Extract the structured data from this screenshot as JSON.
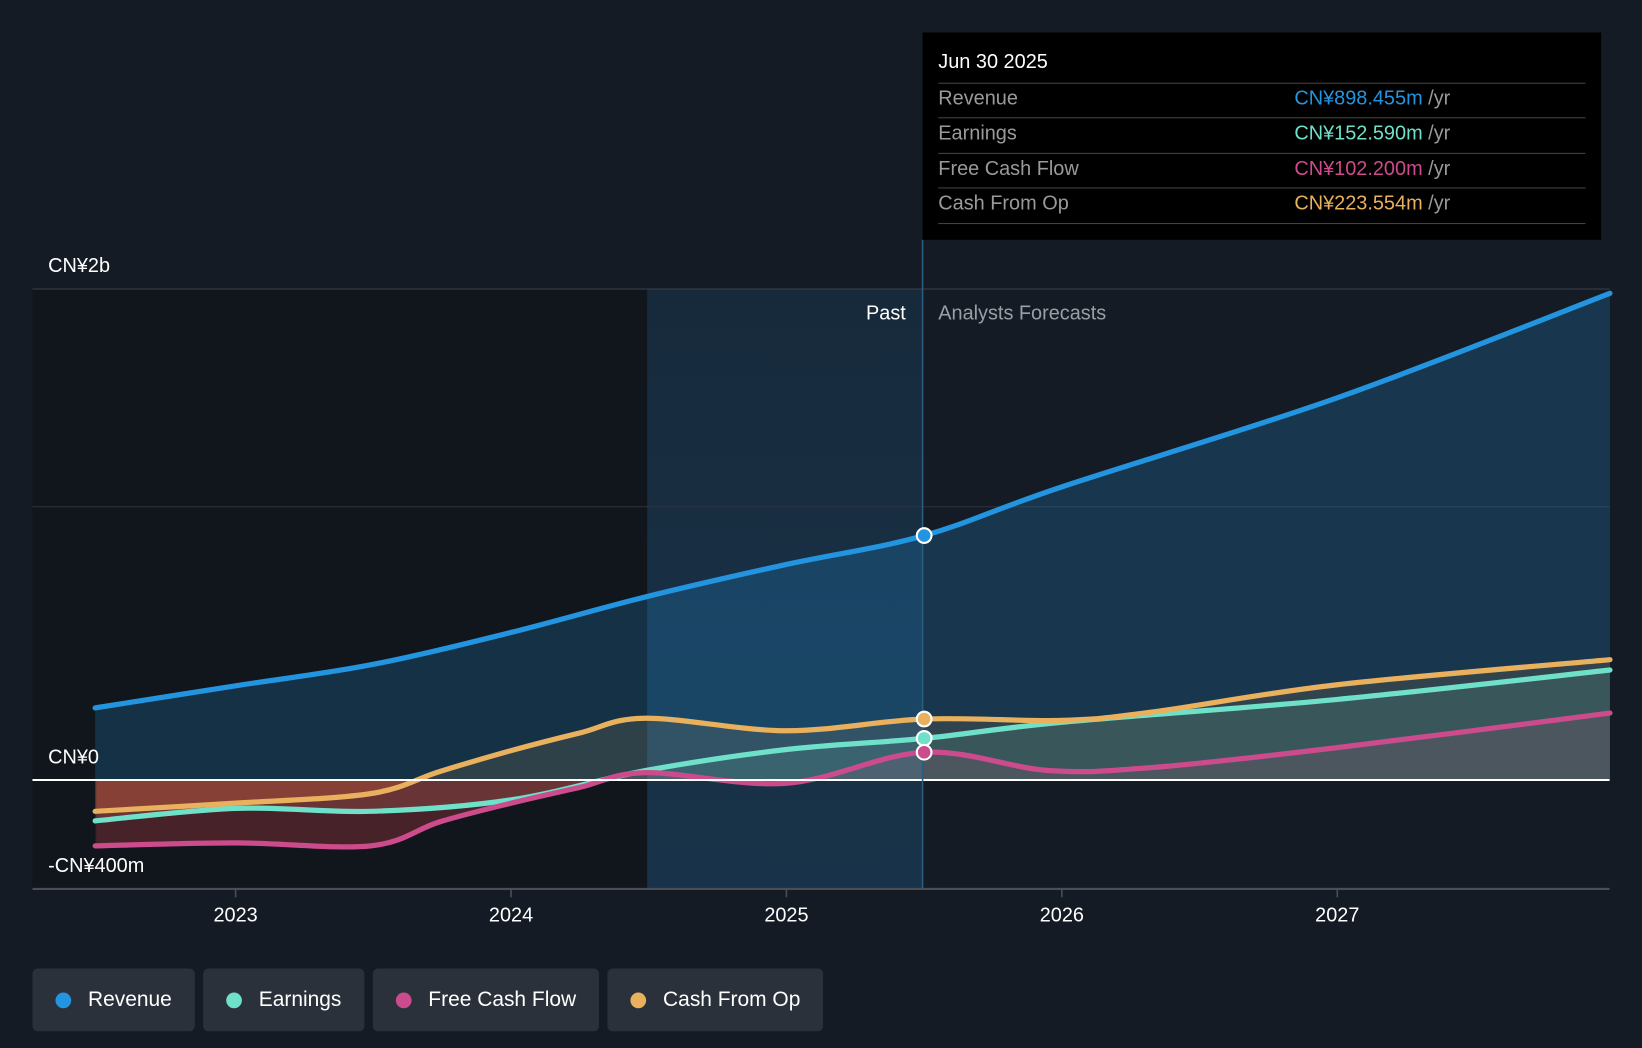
{
  "tooltip": {
    "date": "Jun 30 2025",
    "rows": [
      {
        "label": "Revenue",
        "value": "CN¥898.455m",
        "unit": "/yr",
        "color": "#2394df"
      },
      {
        "label": "Earnings",
        "value": "CN¥152.590m",
        "unit": "/yr",
        "color": "#6fe0c9"
      },
      {
        "label": "Free Cash Flow",
        "value": "CN¥102.200m",
        "unit": "/yr",
        "color": "#cc4b8c"
      },
      {
        "label": "Cash From Op",
        "value": "CN¥223.554m",
        "unit": "/yr",
        "color": "#e9b05d"
      }
    ]
  },
  "chart_data": {
    "type": "line",
    "title": "",
    "xlabel": "",
    "ylabel": "",
    "y_unit": "CN¥ millions",
    "y_tick_labels": [
      {
        "value": 2000,
        "label": "CN¥2b"
      },
      {
        "value": 0,
        "label": "CN¥0"
      },
      {
        "value": -400,
        "label": "-CN¥400m"
      }
    ],
    "x_ticks": [
      2023,
      2024,
      2025,
      2026,
      2027
    ],
    "xlim": [
      2022.49,
      2027.99
    ],
    "ylim": [
      -400,
      1800
    ],
    "past_label": "Past",
    "forecast_label": "Analysts Forecasts",
    "divider_x": 2025.5,
    "shaded_from": 2024.5,
    "series": [
      {
        "name": "Revenue",
        "color": "#2394df",
        "x": [
          2022.49,
          2023,
          2023.49,
          2024,
          2024.49,
          2025,
          2025.5,
          2026,
          2027,
          2027.99
        ],
        "values": [
          265,
          346,
          423,
          542,
          673,
          792,
          898,
          1077,
          1404,
          1788
        ]
      },
      {
        "name": "Earnings",
        "color": "#6fe0c9",
        "x": [
          2022.49,
          2023,
          2023.49,
          2024,
          2024.49,
          2025,
          2025.5,
          2026,
          2027,
          2027.99
        ],
        "values": [
          -150,
          -104,
          -115,
          -73,
          35,
          112,
          153,
          212,
          296,
          404
        ]
      },
      {
        "name": "Free Cash Flow",
        "color": "#cc4b8c",
        "x": [
          2022.49,
          2023,
          2023.49,
          2023.74,
          2024,
          2024.25,
          2024.49,
          2025,
          2025.5,
          2025.95,
          2026.33,
          2027,
          2027.99
        ],
        "values": [
          -242,
          -231,
          -242,
          -154,
          -85,
          -27,
          27,
          -12,
          102,
          35,
          46,
          119,
          246
        ]
      },
      {
        "name": "Cash From Op",
        "color": "#e9b05d",
        "x": [
          2022.49,
          2023,
          2023.49,
          2023.74,
          2024,
          2024.25,
          2024.49,
          2025,
          2025.5,
          2026,
          2026.33,
          2027,
          2027.99
        ],
        "values": [
          -115,
          -85,
          -50,
          31,
          108,
          173,
          227,
          181,
          224,
          219,
          250,
          350,
          442
        ]
      }
    ]
  }
}
